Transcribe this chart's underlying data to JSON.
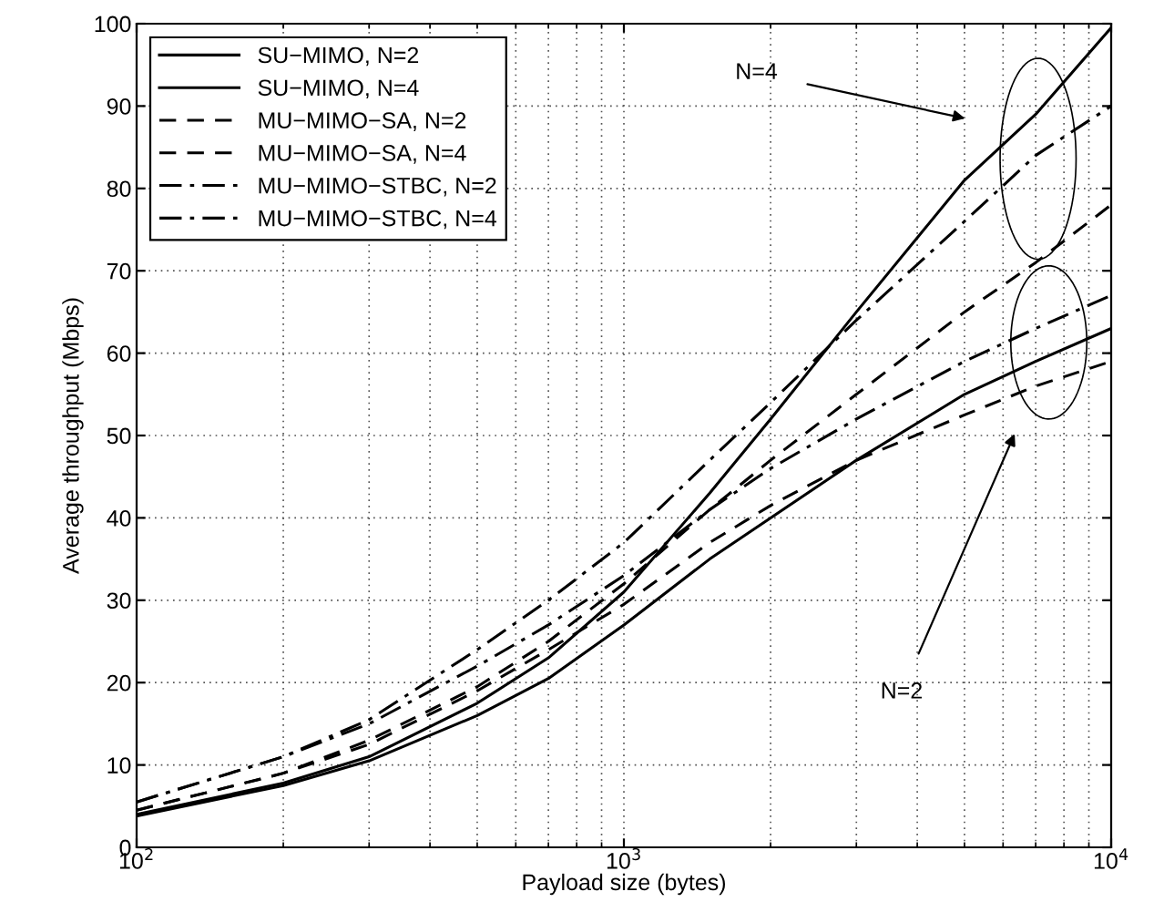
{
  "chart_data": {
    "type": "line",
    "xlabel": "Payload size (bytes)",
    "ylabel": "Average throughput (Mbps)",
    "log": "x",
    "grid": true,
    "legend": "top left",
    "x": [
      100,
      200,
      300,
      500,
      700,
      1000,
      1500,
      2000,
      3000,
      5000,
      7000,
      10000
    ],
    "xlim": [
      100,
      10000
    ],
    "xticks": [
      {
        "value": 100,
        "label": "10$^{2}$"
      },
      {
        "value": 1000,
        "label": "10$^{3}$"
      },
      {
        "value": 10000,
        "label": "10$^{4}$"
      }
    ],
    "ylim": [
      0,
      100
    ],
    "yticks": [
      0,
      10,
      20,
      30,
      40,
      50,
      60,
      70,
      80,
      90,
      100
    ],
    "series": [
      {
        "name": "SU−MIMO, N=2",
        "color": "#000000",
        "line_style": "solid",
        "values": [
          3.8,
          7.5,
          10.5,
          16,
          20.5,
          27,
          35,
          40,
          47,
          55,
          59,
          63
        ]
      },
      {
        "name": "SU−MIMO, N=4",
        "color": "#000000",
        "line_style": "solid",
        "values": [
          4,
          7.8,
          11,
          17.5,
          23,
          31,
          43,
          52,
          65,
          81,
          89,
          99.5
        ]
      },
      {
        "name": "MU−MIMO−SA, N=2",
        "color": "#000000",
        "line_style": "dashed",
        "values": [
          4.5,
          9,
          12.5,
          19,
          24,
          29.5,
          37,
          41.5,
          47,
          52.5,
          56,
          59
        ]
      },
      {
        "name": "MU−MIMO−SA, N=4",
        "color": "#000000",
        "line_style": "dashed",
        "values": [
          4.5,
          9,
          13,
          19.5,
          25,
          32,
          41,
          47,
          55,
          65,
          71,
          78
        ]
      },
      {
        "name": "MU−MIMO−STBC, N=2",
        "color": "#000000",
        "line_style": "dashdot",
        "values": [
          5.5,
          11,
          15,
          22,
          27,
          33,
          41,
          46,
          52,
          59,
          63,
          67
        ]
      },
      {
        "name": "MU−MIMO−STBC, N=4",
        "color": "#000000",
        "line_style": "dashdot",
        "values": [
          5.5,
          11,
          15.5,
          24,
          30,
          37,
          47,
          54,
          64,
          76,
          84,
          90
        ]
      }
    ],
    "annotations": [
      "N=4",
      "N=2"
    ]
  }
}
